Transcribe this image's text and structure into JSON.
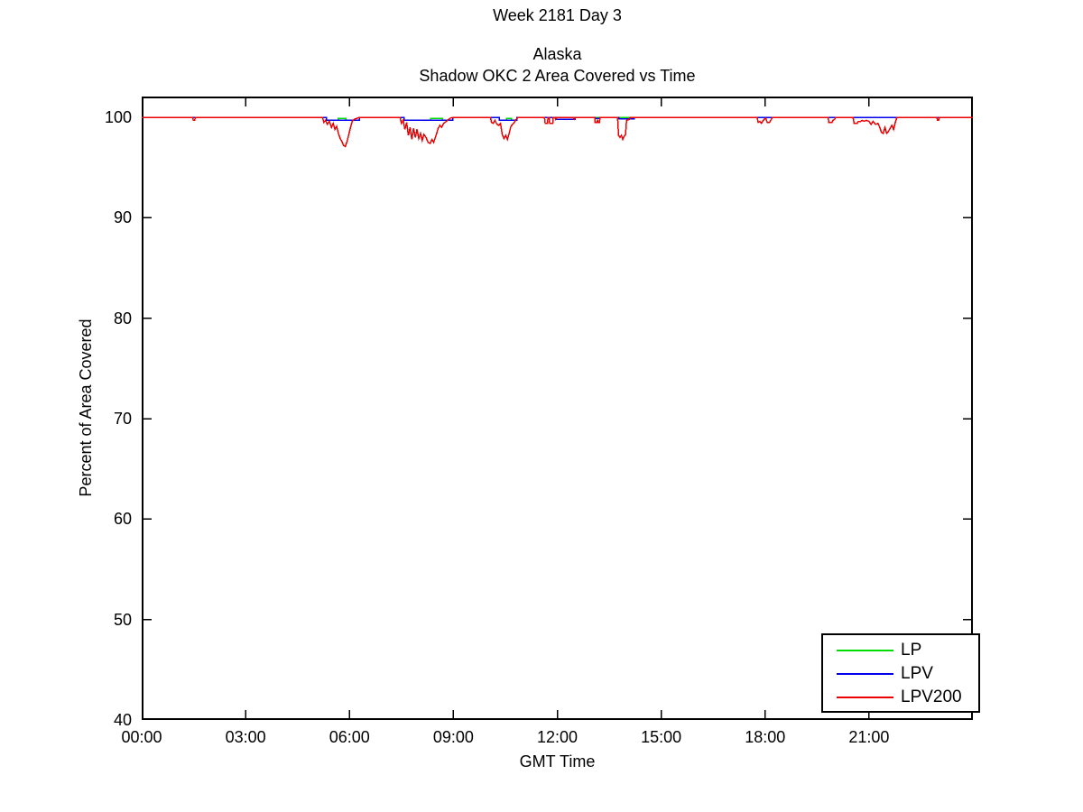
{
  "chart_data": {
    "type": "line",
    "suptitle": "Week 2181 Day 3",
    "title_line1": "Alaska",
    "title_line2": "Shadow OKC 2 Area Covered vs Time",
    "xlabel": "GMT Time",
    "ylabel": "Percent of Area Covered",
    "ylim": [
      40,
      102.07
    ],
    "xlim_hours": [
      0,
      24
    ],
    "grid": false,
    "y_ticks": [
      {
        "value": 100,
        "label": "100"
      },
      {
        "value": 90,
        "label": "90"
      },
      {
        "value": 80,
        "label": "80"
      },
      {
        "value": 70,
        "label": "70"
      },
      {
        "value": 60,
        "label": "60"
      },
      {
        "value": 50,
        "label": "50"
      },
      {
        "value": 40,
        "label": "40"
      }
    ],
    "x_ticks": [
      {
        "hour": 0,
        "label": "00:00"
      },
      {
        "hour": 3,
        "label": "03:00"
      },
      {
        "hour": 6,
        "label": "06:00"
      },
      {
        "hour": 9,
        "label": "09:00"
      },
      {
        "hour": 12,
        "label": "12:00"
      },
      {
        "hour": 15,
        "label": "15:00"
      },
      {
        "hour": 18,
        "label": "18:00"
      },
      {
        "hour": 21,
        "label": "21:00"
      }
    ],
    "legend": {
      "position": "bottom-right",
      "entries": [
        {
          "name": "LP",
          "color": "#00dd00"
        },
        {
          "name": "LPV",
          "color": "#0000ee"
        },
        {
          "name": "LPV200",
          "color": "#ee0000"
        }
      ]
    },
    "series": [
      {
        "name": "LP",
        "color": "#00dd00",
        "points": [
          [
            0,
            100
          ],
          [
            5.34,
            100
          ],
          [
            5.34,
            99.7
          ],
          [
            5.68,
            99.7
          ],
          [
            5.68,
            99.87
          ],
          [
            5.89,
            99.87
          ],
          [
            5.89,
            99.7
          ],
          [
            6.28,
            99.7
          ],
          [
            6.28,
            100
          ],
          [
            7.58,
            100
          ],
          [
            7.58,
            99.7
          ],
          [
            8.34,
            99.7
          ],
          [
            8.34,
            99.87
          ],
          [
            8.68,
            99.87
          ],
          [
            8.68,
            99.7
          ],
          [
            8.99,
            99.7
          ],
          [
            8.99,
            100
          ],
          [
            10.32,
            100
          ],
          [
            10.32,
            99.7
          ],
          [
            10.53,
            99.7
          ],
          [
            10.53,
            99.87
          ],
          [
            10.68,
            99.87
          ],
          [
            10.68,
            99.7
          ],
          [
            10.84,
            99.7
          ],
          [
            10.84,
            100
          ],
          [
            24,
            100
          ]
        ]
      },
      {
        "name": "LPV",
        "color": "#0000ee",
        "points": [
          [
            0,
            100
          ],
          [
            5.34,
            100
          ],
          [
            5.34,
            99.7
          ],
          [
            6.28,
            99.7
          ],
          [
            6.28,
            100
          ],
          [
            7.58,
            100
          ],
          [
            7.58,
            99.7
          ],
          [
            8.99,
            99.7
          ],
          [
            8.99,
            100
          ],
          [
            10.32,
            100
          ],
          [
            10.32,
            99.7
          ],
          [
            10.84,
            99.7
          ],
          [
            10.84,
            100
          ],
          [
            11.96,
            100
          ],
          [
            11.96,
            99.8
          ],
          [
            12.51,
            99.8
          ],
          [
            12.51,
            100
          ],
          [
            13.09,
            100
          ],
          [
            13.09,
            99.9
          ],
          [
            13.23,
            99.9
          ],
          [
            13.23,
            100
          ],
          [
            13.78,
            100
          ],
          [
            13.78,
            99.85
          ],
          [
            14.22,
            99.85
          ],
          [
            14.22,
            100
          ],
          [
            24,
            100
          ]
        ]
      },
      {
        "name": "LPV200",
        "color": "#ee0000",
        "points": [
          [
            0,
            100
          ],
          [
            1.47,
            100
          ],
          [
            1.49,
            99.7
          ],
          [
            1.53,
            99.7
          ],
          [
            1.55,
            100
          ],
          [
            5.22,
            100
          ],
          [
            5.26,
            99.5
          ],
          [
            5.31,
            99.7
          ],
          [
            5.36,
            99.3
          ],
          [
            5.42,
            99.6
          ],
          [
            5.48,
            99.0
          ],
          [
            5.53,
            99.4
          ],
          [
            5.58,
            98.8
          ],
          [
            5.63,
            99.1
          ],
          [
            5.68,
            98.4
          ],
          [
            5.73,
            97.9
          ],
          [
            5.78,
            97.6
          ],
          [
            5.83,
            97.2
          ],
          [
            5.88,
            97.1
          ],
          [
            5.93,
            97.6
          ],
          [
            5.98,
            98.3
          ],
          [
            6.03,
            99.0
          ],
          [
            6.08,
            99.6
          ],
          [
            6.14,
            99.8
          ],
          [
            6.21,
            99.9
          ],
          [
            6.29,
            100
          ],
          [
            7.46,
            100
          ],
          [
            7.5,
            99.4
          ],
          [
            7.55,
            99.7
          ],
          [
            7.6,
            98.8
          ],
          [
            7.65,
            99.5
          ],
          [
            7.7,
            98.2
          ],
          [
            7.75,
            99.0
          ],
          [
            7.8,
            97.8
          ],
          [
            7.85,
            98.9
          ],
          [
            7.9,
            98.0
          ],
          [
            7.95,
            98.8
          ],
          [
            8.0,
            97.9
          ],
          [
            8.05,
            98.4
          ],
          [
            8.1,
            97.7
          ],
          [
            8.15,
            98.3
          ],
          [
            8.21,
            98.0
          ],
          [
            8.27,
            97.5
          ],
          [
            8.33,
            97.4
          ],
          [
            8.38,
            97.8
          ],
          [
            8.43,
            97.5
          ],
          [
            8.5,
            98.2
          ],
          [
            8.56,
            98.9
          ],
          [
            8.61,
            99.2
          ],
          [
            8.66,
            99.0
          ],
          [
            8.72,
            99.4
          ],
          [
            8.8,
            99.6
          ],
          [
            8.9,
            99.9
          ],
          [
            8.99,
            100
          ],
          [
            10.07,
            100
          ],
          [
            10.1,
            99.5
          ],
          [
            10.15,
            99.4
          ],
          [
            10.2,
            99.7
          ],
          [
            10.26,
            99.3
          ],
          [
            10.31,
            99.2
          ],
          [
            10.36,
            99.4
          ],
          [
            10.41,
            98.3
          ],
          [
            10.46,
            97.9
          ],
          [
            10.51,
            98.2
          ],
          [
            10.56,
            97.8
          ],
          [
            10.61,
            98.4
          ],
          [
            10.66,
            99.1
          ],
          [
            10.71,
            99.3
          ],
          [
            10.76,
            99.5
          ],
          [
            10.81,
            99.8
          ],
          [
            10.87,
            100
          ],
          [
            11.63,
            100
          ],
          [
            11.65,
            99.4
          ],
          [
            11.72,
            99.4
          ],
          [
            11.73,
            100
          ],
          [
            11.77,
            100
          ],
          [
            11.78,
            99.4
          ],
          [
            11.87,
            99.4
          ],
          [
            11.88,
            100
          ],
          [
            11.93,
            100
          ],
          [
            11.95,
            99.8
          ],
          [
            11.99,
            100
          ],
          [
            12.46,
            100
          ],
          [
            12.49,
            99.8
          ],
          [
            12.53,
            100
          ],
          [
            13.08,
            100
          ],
          [
            13.09,
            99.5
          ],
          [
            13.14,
            99.5
          ],
          [
            13.16,
            99.7
          ],
          [
            13.18,
            99.5
          ],
          [
            13.22,
            99.5
          ],
          [
            13.23,
            100
          ],
          [
            13.74,
            100
          ],
          [
            13.77,
            98.2
          ],
          [
            13.81,
            98.0
          ],
          [
            13.85,
            98.2
          ],
          [
            13.89,
            97.8
          ],
          [
            13.93,
            98.1
          ],
          [
            13.97,
            98.3
          ],
          [
            14.0,
            99.7
          ],
          [
            14.04,
            99.75
          ],
          [
            14.08,
            99.8
          ],
          [
            14.1,
            100
          ],
          [
            17.77,
            100
          ],
          [
            17.8,
            99.5
          ],
          [
            17.85,
            99.6
          ],
          [
            17.89,
            99.4
          ],
          [
            17.93,
            99.6
          ],
          [
            17.97,
            99.8
          ],
          [
            18.02,
            99.9
          ],
          [
            18.06,
            99.5
          ],
          [
            18.13,
            99.5
          ],
          [
            18.18,
            99.8
          ],
          [
            18.21,
            100
          ],
          [
            19.82,
            100
          ],
          [
            19.84,
            99.5
          ],
          [
            19.93,
            99.5
          ],
          [
            19.96,
            99.7
          ],
          [
            20.01,
            99.8
          ],
          [
            20.04,
            100
          ],
          [
            20.54,
            100
          ],
          [
            20.57,
            99.4
          ],
          [
            20.66,
            99.4
          ],
          [
            20.69,
            99.6
          ],
          [
            20.76,
            99.6
          ],
          [
            20.8,
            99.7
          ],
          [
            20.86,
            99.6
          ],
          [
            20.92,
            99.7
          ],
          [
            21.0,
            99.6
          ],
          [
            21.06,
            99.3
          ],
          [
            21.12,
            99.6
          ],
          [
            21.19,
            99.3
          ],
          [
            21.26,
            99.4
          ],
          [
            21.31,
            99.0
          ],
          [
            21.36,
            98.5
          ],
          [
            21.41,
            98.4
          ],
          [
            21.46,
            99.0
          ],
          [
            21.51,
            98.4
          ],
          [
            21.56,
            98.6
          ],
          [
            21.61,
            98.9
          ],
          [
            21.66,
            99.2
          ],
          [
            21.71,
            98.8
          ],
          [
            21.76,
            99.5
          ],
          [
            21.81,
            100
          ],
          [
            22.96,
            100
          ],
          [
            22.98,
            99.7
          ],
          [
            23.01,
            99.7
          ],
          [
            23.03,
            100
          ],
          [
            24,
            100
          ]
        ]
      }
    ]
  }
}
